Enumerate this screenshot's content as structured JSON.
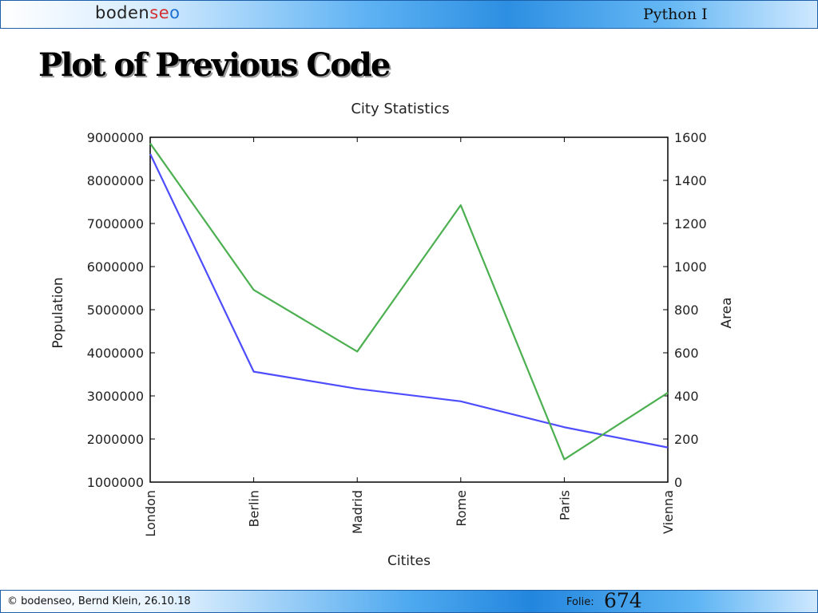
{
  "header": {
    "logo_prefix": "boden",
    "logo_middle": "se",
    "logo_suffix": "o",
    "course": "Python I"
  },
  "slide": {
    "title": "Plot of Previous Code"
  },
  "chart_data": {
    "type": "line",
    "title": "City Statistics",
    "xlabel": "Citites",
    "ylabel": "Population",
    "y2label": "Area",
    "categories": [
      "London",
      "Berlin",
      "Madrid",
      "Rome",
      "Paris",
      "Vienna"
    ],
    "ylim": [
      1000000,
      9000000
    ],
    "y2lim": [
      0,
      1600
    ],
    "yticks": [
      "1000000",
      "2000000",
      "3000000",
      "4000000",
      "5000000",
      "6000000",
      "7000000",
      "8000000",
      "9000000"
    ],
    "y2ticks": [
      "0",
      "200",
      "400",
      "600",
      "800",
      "1000",
      "1200",
      "1400",
      "1600"
    ],
    "grid": false,
    "series": [
      {
        "axis": "left",
        "color": "#4d4dff",
        "values": [
          8615246,
          3562166,
          3165235,
          2874038,
          2273305,
          1803425
        ]
      },
      {
        "axis": "right",
        "color": "#4caf50",
        "values": [
          1572,
          891.85,
          605.77,
          1285,
          105.4,
          414.6
        ]
      }
    ]
  },
  "footer": {
    "copyright": "© bodenseo, Bernd Klein, 26.10.18",
    "folie_label": "Folie:",
    "folie_number": "674"
  },
  "colors": {
    "logo_dark": "#222222",
    "logo_s": "#d32f2f",
    "logo_e": "#2e9e3e",
    "logo_o": "#1e6fd0"
  }
}
